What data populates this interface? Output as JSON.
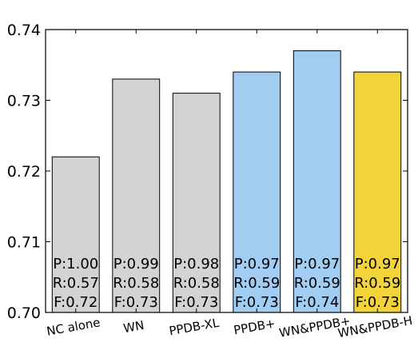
{
  "chart_data": {
    "type": "bar",
    "categories": [
      "NC alone",
      "WN",
      "PPDB-XL",
      "PPDB+",
      "WN&PPDB+",
      "WN&PPDB-H"
    ],
    "values": [
      0.722,
      0.733,
      0.731,
      0.734,
      0.737,
      0.734
    ],
    "bar_colors": [
      "#d3d3d3",
      "#d3d3d3",
      "#d3d3d3",
      "#a2cdf2",
      "#a2cdf2",
      "#f2d43a"
    ],
    "annotations": [
      [
        "P:1.00",
        "R:0.57",
        "F:0.72"
      ],
      [
        "P:0.99",
        "R:0.58",
        "F:0.73"
      ],
      [
        "P:0.98",
        "R:0.58",
        "F:0.73"
      ],
      [
        "P:0.97",
        "R:0.59",
        "F:0.73"
      ],
      [
        "P:0.97",
        "R:0.59",
        "F:0.74"
      ],
      [
        "P:0.97",
        "R:0.59",
        "F:0.73"
      ]
    ],
    "yticks": [
      "0.70",
      "0.71",
      "0.72",
      "0.73",
      "0.74"
    ],
    "ylim": [
      0.7,
      0.74
    ],
    "title": "",
    "xlabel": "",
    "ylabel": "",
    "grid": false,
    "legend": "none"
  }
}
